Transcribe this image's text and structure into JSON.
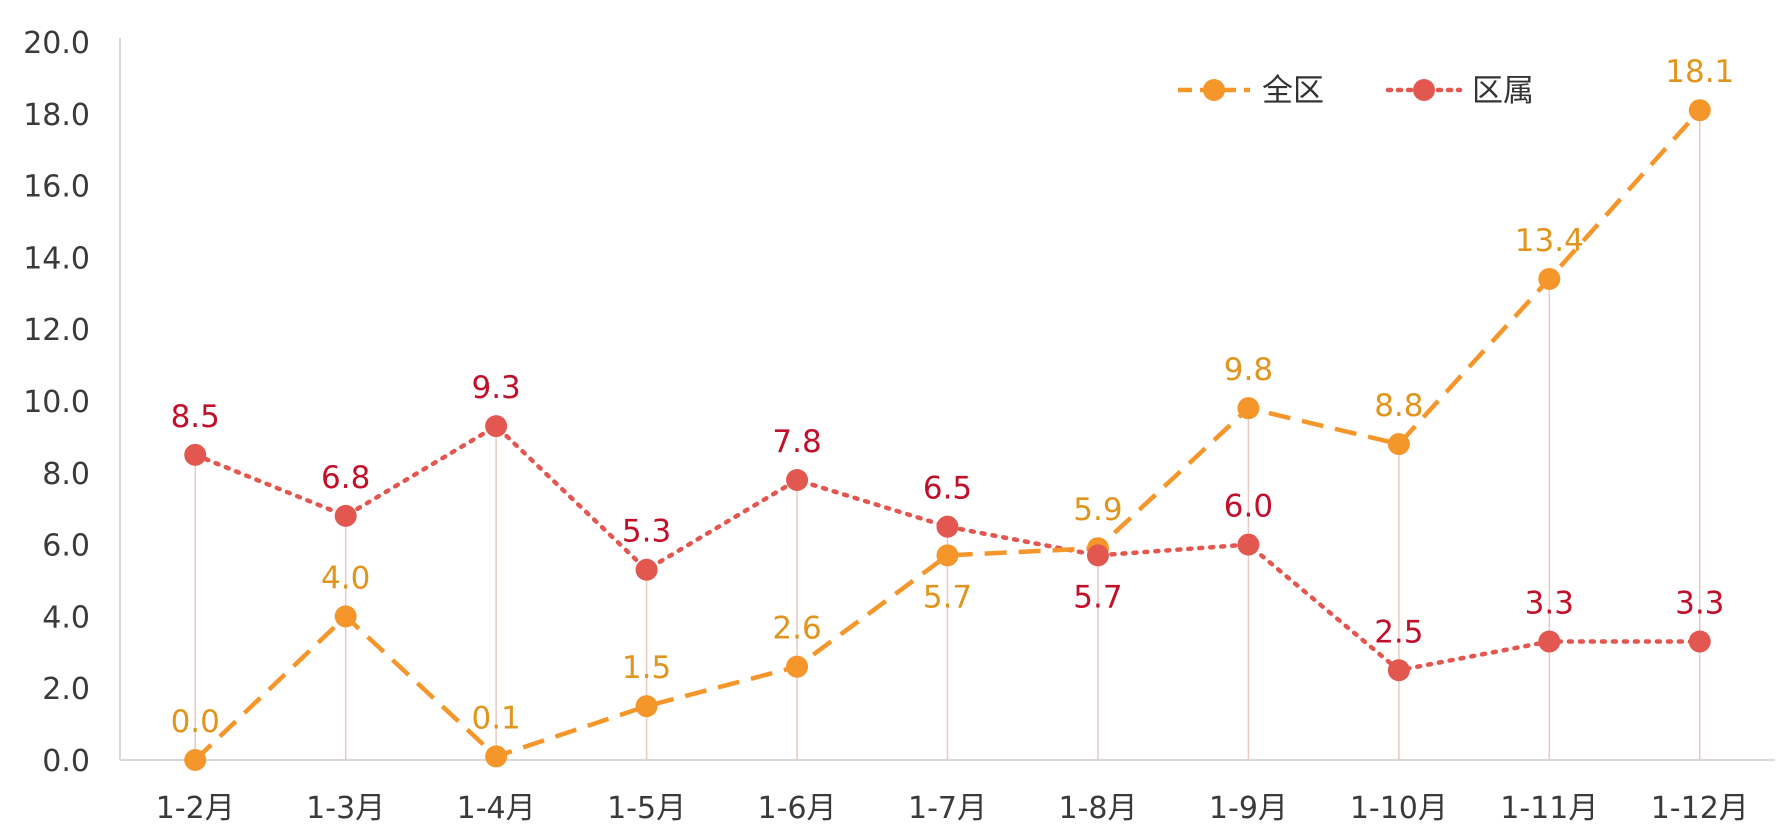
{
  "chart_data": {
    "type": "line",
    "categories": [
      "1-2月",
      "1-3月",
      "1-4月",
      "1-5月",
      "1-6月",
      "1-7月",
      "1-8月",
      "1-9月",
      "1-10月",
      "1-11月",
      "1-12月"
    ],
    "series": [
      {
        "name": "全区",
        "values": [
          0.0,
          4.0,
          0.1,
          1.5,
          2.6,
          5.7,
          5.9,
          9.8,
          8.8,
          13.4,
          18.1
        ],
        "labels": [
          "0.0",
          "4.0",
          "0.1",
          "1.5",
          "2.6",
          "5.7",
          "5.9",
          "9.8",
          "8.8",
          "13.4",
          "18.1"
        ],
        "color": "#F5962B",
        "line_style": "dashed",
        "label_color": "#E0951F"
      },
      {
        "name": "区属",
        "values": [
          8.5,
          6.8,
          9.3,
          5.3,
          7.8,
          6.5,
          5.7,
          6.0,
          2.5,
          3.3,
          3.3
        ],
        "labels": [
          "8.5",
          "6.8",
          "9.3",
          "5.3",
          "7.8",
          "6.5",
          "5.7",
          "6.0",
          "2.5",
          "3.3",
          "3.3"
        ],
        "color": "#E2574F",
        "line_style": "dotted",
        "label_color": "#C0102A"
      }
    ],
    "ylim": [
      0,
      20
    ],
    "yticks": [
      "0.0",
      "2.0",
      "4.0",
      "6.0",
      "8.0",
      "10.0",
      "12.0",
      "14.0",
      "16.0",
      "18.0",
      "20.0"
    ],
    "title": "",
    "xlabel": "",
    "ylabel": "",
    "grid": false,
    "drop_lines": true,
    "legend_position": "top-right"
  }
}
